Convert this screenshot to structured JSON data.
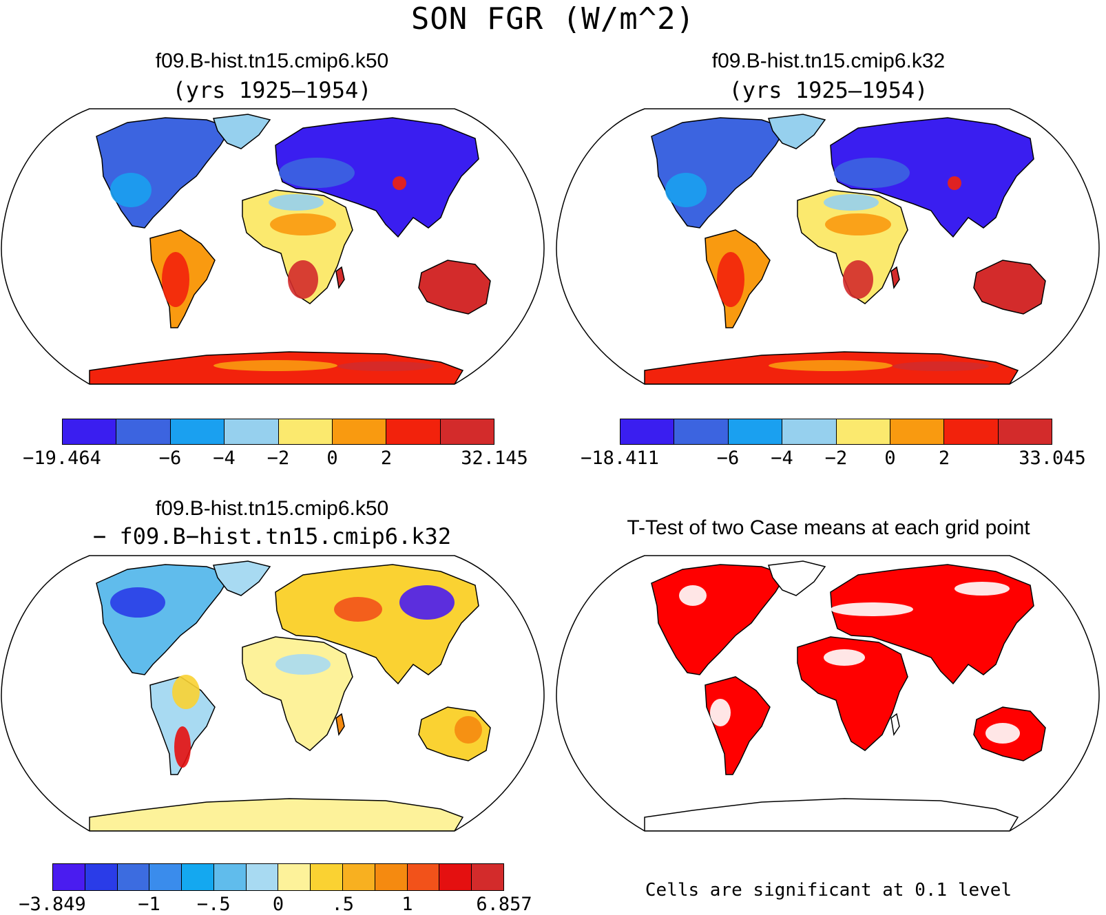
{
  "figure_title": "SON FGR (W/m^2)",
  "panels": {
    "top_left": {
      "title": "f09.B-hist.tn15.cmip6.k50",
      "subtitle": "(yrs 1925–1954)",
      "colorbar": {
        "colors": [
          "#3a1ef0",
          "#3c64e0",
          "#1aa0f0",
          "#96d0ee",
          "#fbe96e",
          "#f99a10",
          "#f2220c",
          "#d32b2b"
        ],
        "labels": [
          "−19.464",
          "−6",
          "−4",
          "−2",
          "0",
          "2",
          "32.145"
        ]
      }
    },
    "top_right": {
      "title": "f09.B-hist.tn15.cmip6.k32",
      "subtitle": "(yrs 1925–1954)",
      "colorbar": {
        "colors": [
          "#3a1ef0",
          "#3c64e0",
          "#1aa0f0",
          "#96d0ee",
          "#fbe96e",
          "#f99a10",
          "#f2220c",
          "#d32b2b"
        ],
        "labels": [
          "−18.411",
          "−6",
          "−4",
          "−2",
          "0",
          "2",
          "33.045"
        ]
      }
    },
    "bottom_left": {
      "title": "f09.B-hist.tn15.cmip6.k50",
      "subtitle": "− f09.B−hist.tn15.cmip6.k32",
      "colorbar": {
        "colors": [
          "#4a1cf0",
          "#2a3ce8",
          "#3c6ce0",
          "#3a8cec",
          "#14a8f0",
          "#60bcec",
          "#a8daf2",
          "#fdf29a",
          "#fad232",
          "#f8b020",
          "#f58a10",
          "#f2521a",
          "#e41010",
          "#d32b2b"
        ],
        "labels": [
          "−3.849",
          "−1",
          "−.5",
          "0",
          ".5",
          "1",
          "6.857"
        ]
      }
    },
    "bottom_right": {
      "title": "T-Test of two Case means at each grid point",
      "note": "Cells are significant at 0.1 level",
      "colors": {
        "significant": "#ff0000"
      }
    }
  }
}
